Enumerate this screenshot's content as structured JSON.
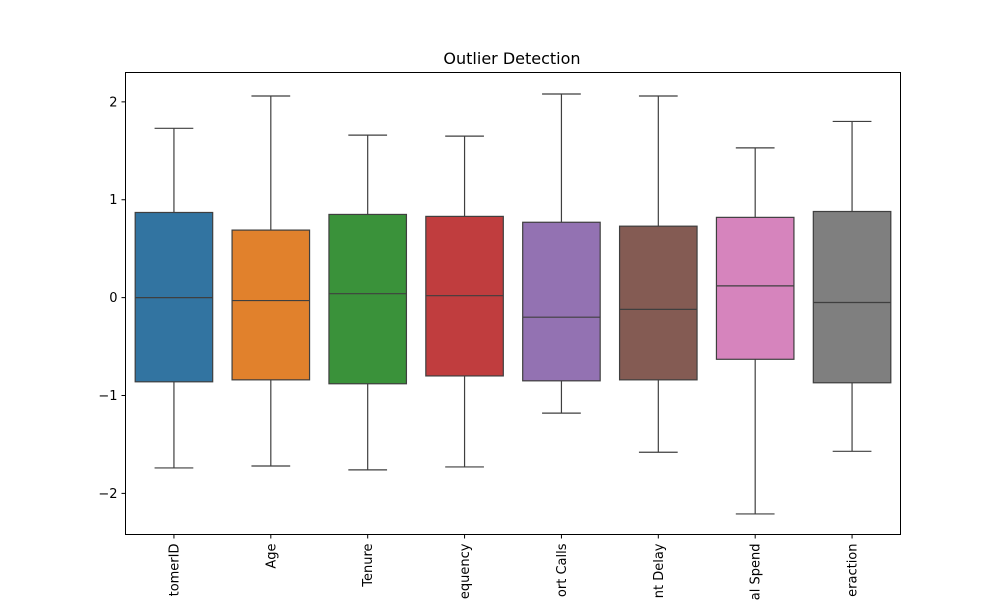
{
  "chart_data": {
    "type": "box",
    "title": "Outlier Detection",
    "xlabel": "",
    "ylabel": "",
    "ylim": [
      -2.42,
      2.3
    ],
    "yticks": [
      2,
      1,
      0,
      -1,
      -2
    ],
    "ytick_labels": [
      "2",
      "1",
      "0",
      "−1",
      "−2"
    ],
    "grid": false,
    "legend": "none",
    "tick_labels_visible": [
      "tomerID",
      "Age",
      "Tenure",
      "equency",
      "ort Calls",
      "nt Delay",
      "al Spend",
      "eraction"
    ],
    "series": [
      {
        "label": "tomerID",
        "color": "#3274a1",
        "whisker_low": -1.74,
        "q1": -0.86,
        "median": 0.0,
        "q3": 0.87,
        "whisker_high": 1.73
      },
      {
        "label": "Age",
        "color": "#e1812c",
        "whisker_low": -1.72,
        "q1": -0.84,
        "median": -0.03,
        "q3": 0.69,
        "whisker_high": 2.06
      },
      {
        "label": "Tenure",
        "color": "#3a923a",
        "whisker_low": -1.76,
        "q1": -0.88,
        "median": 0.04,
        "q3": 0.85,
        "whisker_high": 1.66
      },
      {
        "label": "equency",
        "color": "#c03d3e",
        "whisker_low": -1.73,
        "q1": -0.8,
        "median": 0.02,
        "q3": 0.83,
        "whisker_high": 1.65
      },
      {
        "label": "ort Calls",
        "color": "#9372b2",
        "whisker_low": -1.18,
        "q1": -0.85,
        "median": -0.2,
        "q3": 0.77,
        "whisker_high": 2.08
      },
      {
        "label": "nt Delay",
        "color": "#845b53",
        "whisker_low": -1.58,
        "q1": -0.84,
        "median": -0.12,
        "q3": 0.73,
        "whisker_high": 2.06
      },
      {
        "label": "al Spend",
        "color": "#d684bd",
        "whisker_low": -2.21,
        "q1": -0.63,
        "median": 0.12,
        "q3": 0.82,
        "whisker_high": 1.53
      },
      {
        "label": "eraction",
        "color": "#7f7f7f",
        "whisker_low": -1.57,
        "q1": -0.87,
        "median": -0.05,
        "q3": 0.88,
        "whisker_high": 1.8
      }
    ]
  }
}
